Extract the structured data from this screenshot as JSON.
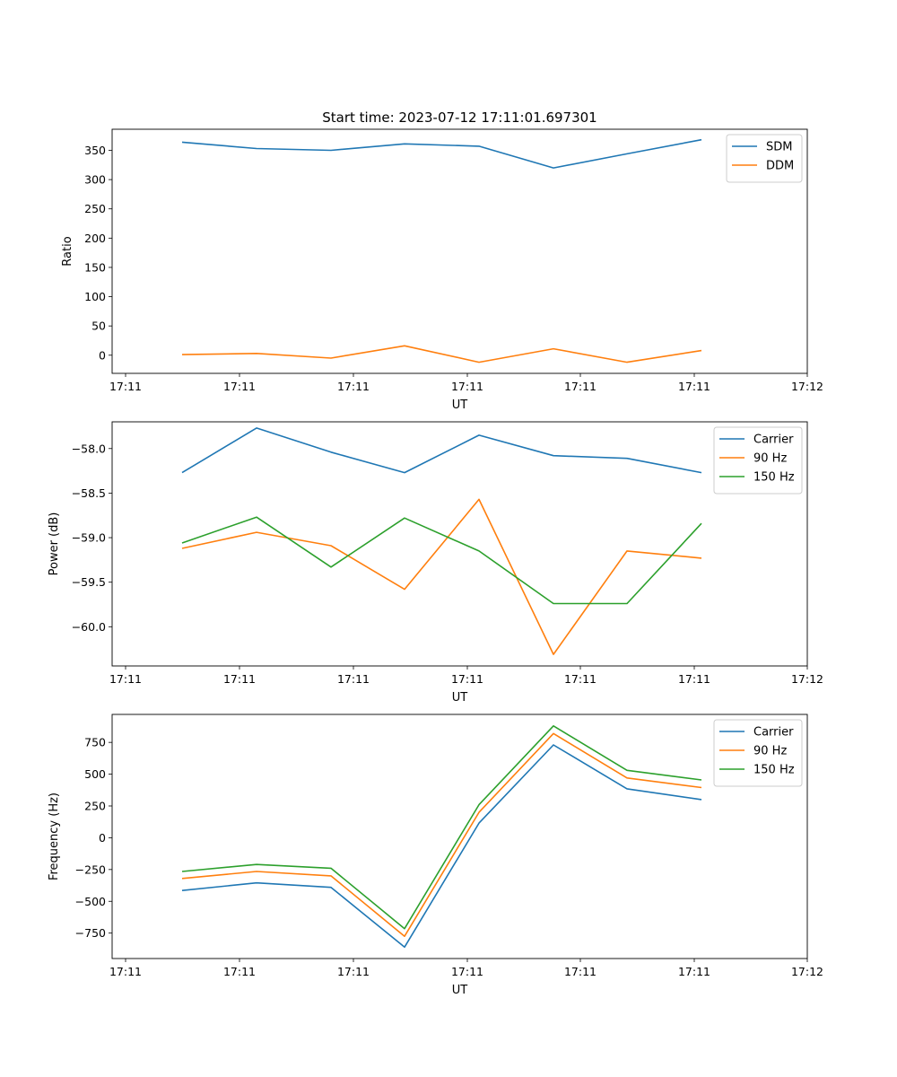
{
  "chart_data": [
    {
      "type": "line",
      "title": "Start time: 2023-07-12 17:11:01.697301",
      "xlabel": "UT",
      "ylabel": "Ratio",
      "x_tick_labels": [
        "17:11",
        "17:11",
        "17:11",
        "17:11",
        "17:11",
        "17:11",
        "17:12"
      ],
      "y_ticks": [
        0,
        50,
        100,
        150,
        200,
        250,
        300,
        350
      ],
      "y_tick_labels": [
        "0",
        "50",
        "100",
        "150",
        "200",
        "250",
        "300",
        "350"
      ],
      "ylim": [
        -31,
        386
      ],
      "legend_position": "top-right",
      "series": [
        {
          "name": "SDM",
          "color": "#1f77b4",
          "values": [
            364,
            353,
            350,
            361,
            357,
            320,
            344,
            368
          ]
        },
        {
          "name": "DDM",
          "color": "#ff7f0e",
          "values": [
            1,
            3,
            -5,
            16,
            -12,
            11,
            -12,
            8
          ]
        }
      ]
    },
    {
      "type": "line",
      "title": "",
      "xlabel": "UT",
      "ylabel": "Power (dB)",
      "x_tick_labels": [
        "17:11",
        "17:11",
        "17:11",
        "17:11",
        "17:11",
        "17:11",
        "17:12"
      ],
      "y_ticks": [
        -60.0,
        -59.5,
        -59.0,
        -58.5,
        -58.0
      ],
      "y_tick_labels": [
        "−60.0",
        "−59.5",
        "−59.0",
        "−58.5",
        "−58.0"
      ],
      "ylim": [
        -60.44,
        -57.7
      ],
      "legend_position": "top-right",
      "series": [
        {
          "name": "Carrier",
          "color": "#1f77b4",
          "values": [
            -58.27,
            -57.77,
            -58.04,
            -58.27,
            -57.85,
            -58.08,
            -58.11,
            -58.27
          ]
        },
        {
          "name": "90 Hz",
          "color": "#ff7f0e",
          "values": [
            -59.12,
            -58.94,
            -59.09,
            -59.58,
            -58.57,
            -60.31,
            -59.15,
            -59.23
          ]
        },
        {
          "name": "150 Hz",
          "color": "#2ca02c",
          "values": [
            -59.06,
            -58.77,
            -59.33,
            -58.78,
            -59.15,
            -59.74,
            -59.74,
            -58.84
          ]
        }
      ]
    },
    {
      "type": "line",
      "title": "",
      "xlabel": "UT",
      "ylabel": "Frequency (Hz)",
      "x_tick_labels": [
        "17:11",
        "17:11",
        "17:11",
        "17:11",
        "17:11",
        "17:11",
        "17:12"
      ],
      "y_ticks": [
        -750,
        -500,
        -250,
        0,
        250,
        500,
        750
      ],
      "y_tick_labels": [
        "−750",
        "−500",
        "−250",
        "0",
        "250",
        "500",
        "750"
      ],
      "ylim": [
        -950,
        970
      ],
      "legend_position": "top-right",
      "series": [
        {
          "name": "Carrier",
          "color": "#1f77b4",
          "values": [
            -415,
            -355,
            -390,
            -860,
            115,
            730,
            385,
            300
          ]
        },
        {
          "name": "90 Hz",
          "color": "#ff7f0e",
          "values": [
            -320,
            -265,
            -300,
            -775,
            200,
            820,
            470,
            395
          ]
        },
        {
          "name": "150 Hz",
          "color": "#2ca02c",
          "values": [
            -265,
            -210,
            -240,
            -715,
            260,
            880,
            530,
            455
          ]
        }
      ]
    }
  ]
}
